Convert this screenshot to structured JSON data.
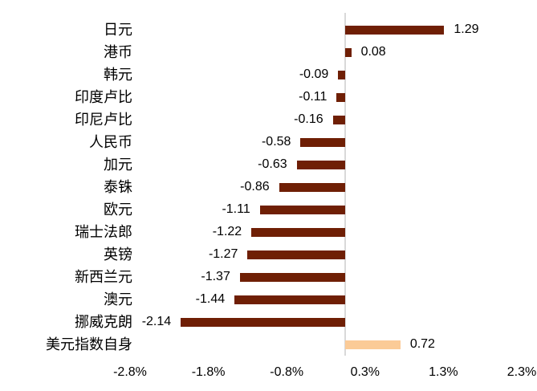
{
  "chart_data": {
    "type": "bar",
    "orientation": "horizontal",
    "title": "",
    "xlabel": "",
    "ylabel": "",
    "unit": "%",
    "grid": false,
    "legend": false,
    "categories": [
      "日元",
      "港币",
      "韩元",
      "印度卢比",
      "印尼卢比",
      "人民币",
      "加元",
      "泰铢",
      "欧元",
      "瑞士法郎",
      "英镑",
      "新西兰元",
      "澳元",
      "挪威克朗",
      "美元指数自身"
    ],
    "values": [
      1.29,
      0.08,
      -0.09,
      -0.11,
      -0.16,
      -0.58,
      -0.63,
      -0.86,
      -1.11,
      -1.22,
      -1.27,
      -1.37,
      -1.44,
      -2.14,
      0.72
    ],
    "value_labels": [
      "1.29",
      "0.08",
      "-0.09",
      "-0.11",
      "-0.16",
      "-0.58",
      "-0.63",
      "-0.86",
      "-1.11",
      "-1.22",
      "-1.27",
      "-1.37",
      "-1.44",
      "-2.14",
      "0.72"
    ],
    "highlight_index": 14,
    "axis": {
      "min": -2.8,
      "max": 2.3,
      "tick_labels": [
        "-2.8%",
        "-1.8%",
        "-0.8%",
        "0.3%",
        "1.3%",
        "2.3%"
      ]
    },
    "colors": {
      "default_bar": "#6F1F05",
      "highlight_bar": "#FBCB97",
      "axis_line": "#D9D9D9",
      "text": "#000000"
    }
  }
}
